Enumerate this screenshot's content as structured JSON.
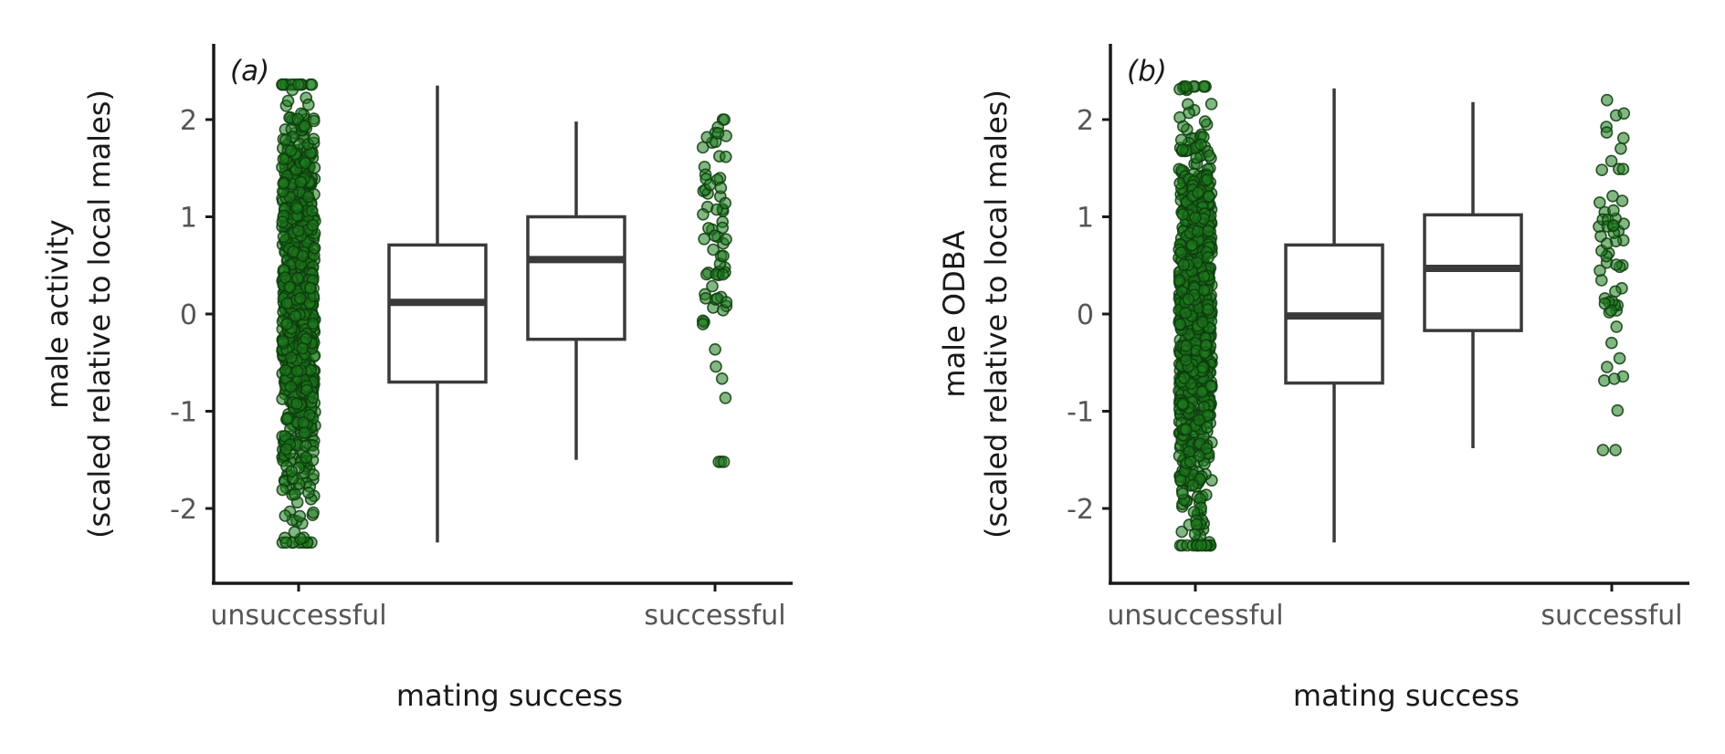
{
  "chart_data": [
    {
      "type": "box",
      "panel_label": "(a)",
      "xlabel": "mating success",
      "ylabel": [
        "male activity",
        "(scaled relative to local males)"
      ],
      "categories": [
        "unsuccessful",
        "successful"
      ],
      "ylim": [
        -2.8,
        2.8
      ],
      "yticks": [
        2,
        1,
        0,
        -1,
        -2
      ],
      "grid": false,
      "point_color": "#1f7a1f",
      "boxes": [
        {
          "category": "unsuccessful",
          "whisker_low": -2.35,
          "q1": -0.7,
          "median": 0.12,
          "q3": 0.71,
          "whisker_high": 2.35
        },
        {
          "category": "successful",
          "whisker_low": -1.5,
          "q1": -0.26,
          "median": 0.56,
          "q3": 1.0,
          "whisker_high": 1.98
        }
      ],
      "points": {
        "unsuccessful": {
          "n": 900,
          "min": -2.35,
          "max": 2.36
        },
        "successful": {
          "n": 70,
          "min": -1.52,
          "max": 2.0
        }
      }
    },
    {
      "type": "box",
      "panel_label": "(b)",
      "xlabel": "mating success",
      "ylabel": [
        "male ODBA",
        "(scaled relative to local males)"
      ],
      "categories": [
        "unsuccessful",
        "successful"
      ],
      "ylim": [
        -2.8,
        2.8
      ],
      "yticks": [
        2,
        1,
        0,
        -1,
        -2
      ],
      "grid": false,
      "point_color": "#1f7a1f",
      "boxes": [
        {
          "category": "unsuccessful",
          "whisker_low": -2.35,
          "q1": -0.71,
          "median": -0.02,
          "q3": 0.71,
          "whisker_high": 2.32
        },
        {
          "category": "successful",
          "whisker_low": -1.38,
          "q1": -0.17,
          "median": 0.47,
          "q3": 1.02,
          "whisker_high": 2.18
        }
      ],
      "points": {
        "unsuccessful": {
          "n": 900,
          "min": -2.38,
          "max": 2.34
        },
        "successful": {
          "n": 60,
          "min": -1.4,
          "max": 2.2
        }
      }
    }
  ]
}
